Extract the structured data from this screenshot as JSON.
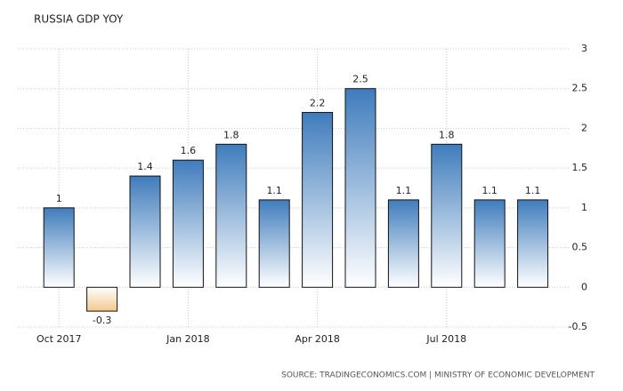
{
  "chart_data": {
    "type": "bar",
    "title": "RUSSIA GDP YOY",
    "categories": [
      "Oct 2017",
      null,
      null,
      "Jan 2018",
      null,
      null,
      "Apr 2018",
      null,
      null,
      "Jul 2018",
      null,
      null
    ],
    "values": [
      1,
      -0.3,
      1.4,
      1.6,
      1.8,
      1.1,
      2.2,
      2.5,
      1.1,
      1.8,
      1.1,
      1.1
    ],
    "color": "#3f7cbc",
    "negative_color": "#f2c98e",
    "ylim": [
      -0.5,
      3
    ],
    "yticks": [
      -0.5,
      0,
      0.5,
      1,
      1.5,
      2,
      2.5,
      3
    ],
    "grid": true,
    "source": "SOURCE: TRADINGECONOMICS.COM | MINISTRY OF ECONOMIC DEVELOPMENT"
  }
}
